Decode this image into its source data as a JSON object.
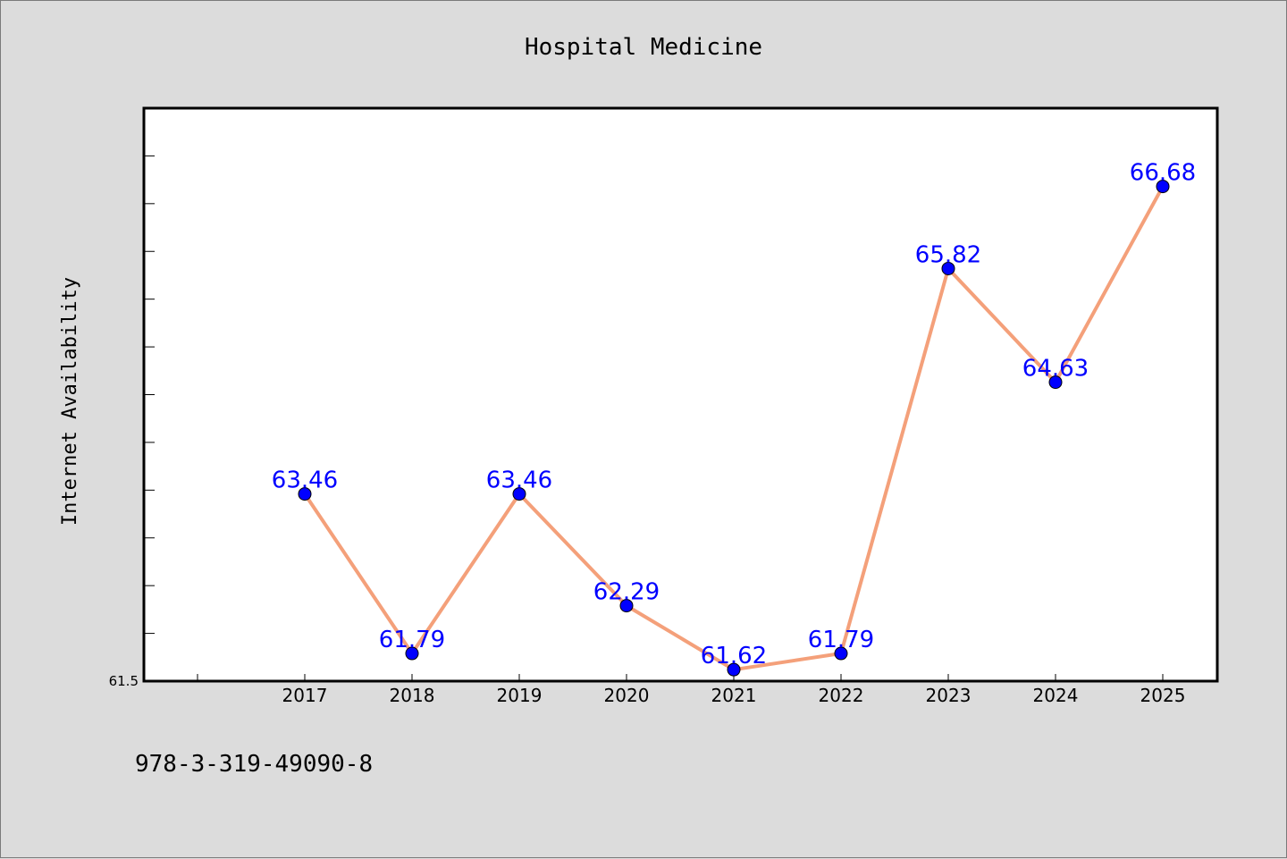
{
  "chart_data": {
    "type": "line",
    "title": "Hospital Medicine",
    "xlabel": "",
    "ylabel": "Internet Availability",
    "categories": [
      "2017",
      "2018",
      "2019",
      "2020",
      "2021",
      "2022",
      "2023",
      "2024",
      "2025"
    ],
    "series": [
      {
        "values": [
          63.46,
          61.79,
          63.46,
          62.29,
          61.62,
          61.79,
          65.82,
          64.63,
          66.68
        ]
      }
    ],
    "value_labels": [
      "63.46",
      "61.79",
      "63.46",
      "62.29",
      "61.62",
      "61.79",
      "65.82",
      "64.63",
      "66.68"
    ],
    "ytick_labels": [
      "61.5"
    ],
    "ylim": [
      61.5,
      67.5
    ],
    "grid": false,
    "line_color": "#f4a07a",
    "marker_color": "#0000ff",
    "label_color": "#0000ff"
  },
  "footer_text": "978-3-319-49090-8"
}
